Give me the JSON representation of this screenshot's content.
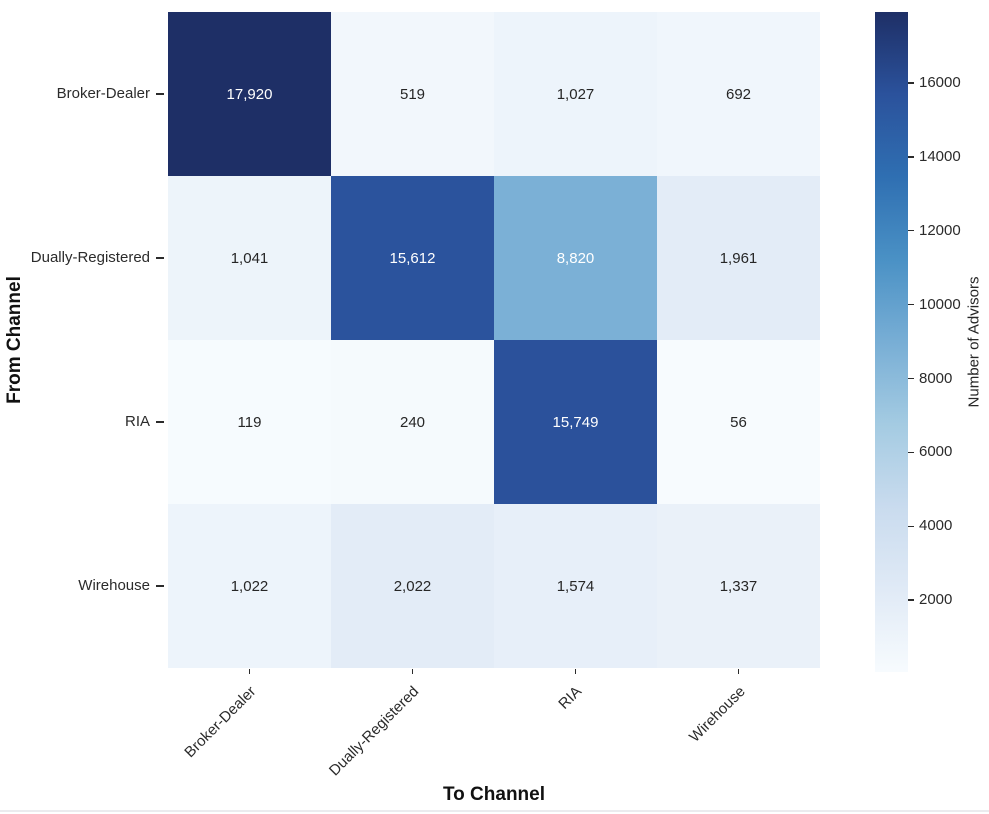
{
  "figure": {
    "background": "#ffffff",
    "text_dark": "#262626",
    "text_light": "#ffffff"
  },
  "chart_data": {
    "type": "heatmap",
    "xlabel": "To Channel",
    "ylabel": "From Channel",
    "x_categories": [
      "Broker-Dealer",
      "Dually-Registered",
      "RIA",
      "Wirehouse"
    ],
    "y_categories": [
      "Broker-Dealer",
      "Dually-Registered",
      "RIA",
      "Wirehouse"
    ],
    "values": [
      [
        17920,
        519,
        1027,
        692
      ],
      [
        1041,
        15612,
        8820,
        1961
      ],
      [
        119,
        240,
        15749,
        56
      ],
      [
        1022,
        2022,
        1574,
        1337
      ]
    ],
    "value_labels": [
      [
        "17,920",
        "519",
        "1,027",
        "692"
      ],
      [
        "1,041",
        "15,612",
        "8,820",
        "1,961"
      ],
      [
        "119",
        "240",
        "15,749",
        "56"
      ],
      [
        "1,022",
        "2,022",
        "1,574",
        "1,337"
      ]
    ],
    "vmin": 56,
    "vmax": 17920,
    "grid": false,
    "colormap": {
      "name": "Blues",
      "stops": [
        "#f7fbfe",
        "#e0eaf6",
        "#c9dbee",
        "#a4cbe2",
        "#78aed5",
        "#4a91c5",
        "#2f6fb2",
        "#2b529c",
        "#1e2f66"
      ]
    },
    "colorbar": {
      "label": "Number of Advisors",
      "position": "right",
      "ticks": [
        2000,
        4000,
        6000,
        8000,
        10000,
        12000,
        14000,
        16000
      ],
      "tick_labels": [
        "2000",
        "4000",
        "6000",
        "8000",
        "10000",
        "12000",
        "14000",
        "16000"
      ]
    },
    "annotation_colors": {
      "dark": "#262626",
      "light": "#ffffff"
    }
  }
}
